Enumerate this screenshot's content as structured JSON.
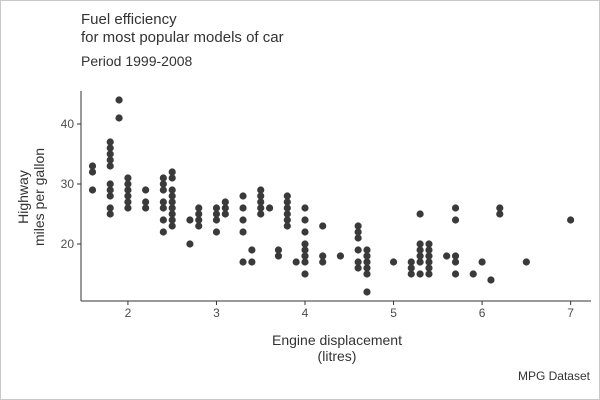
{
  "colors": {
    "points": "#3a3a3a",
    "axis": "#333333",
    "text": "#333333",
    "background": "#ffffff"
  },
  "chart_data": {
    "type": "scatter",
    "title_lines": [
      "Fuel efficiency",
      "for most popular models of car"
    ],
    "subtitle": "Period 1999-2008",
    "xlabel_lines": [
      "Engine displacement",
      "(litres)"
    ],
    "ylabel_lines": [
      "Highway",
      "miles per gallon"
    ],
    "caption": "MPG Dataset",
    "xlim": [
      1.47,
      7.23
    ],
    "ylim": [
      10.5,
      45.5
    ],
    "xticks": [
      2,
      3,
      4,
      5,
      6,
      7
    ],
    "yticks": [
      20,
      30,
      40
    ],
    "grid": false,
    "points": [
      [
        1.6,
        33
      ],
      [
        1.6,
        32
      ],
      [
        1.6,
        29
      ],
      [
        1.8,
        37
      ],
      [
        1.8,
        36
      ],
      [
        1.8,
        35
      ],
      [
        1.8,
        34
      ],
      [
        1.8,
        33
      ],
      [
        1.8,
        30
      ],
      [
        1.8,
        29
      ],
      [
        1.8,
        28
      ],
      [
        1.8,
        26
      ],
      [
        1.8,
        25
      ],
      [
        1.9,
        44
      ],
      [
        1.9,
        41
      ],
      [
        2.0,
        31
      ],
      [
        2.0,
        30
      ],
      [
        2.0,
        29
      ],
      [
        2.0,
        28
      ],
      [
        2.0,
        27
      ],
      [
        2.0,
        26
      ],
      [
        2.2,
        29
      ],
      [
        2.2,
        27
      ],
      [
        2.2,
        26
      ],
      [
        2.4,
        31
      ],
      [
        2.4,
        30
      ],
      [
        2.4,
        29
      ],
      [
        2.4,
        27
      ],
      [
        2.4,
        26
      ],
      [
        2.4,
        24
      ],
      [
        2.4,
        22
      ],
      [
        2.5,
        32
      ],
      [
        2.5,
        31
      ],
      [
        2.5,
        29
      ],
      [
        2.5,
        28
      ],
      [
        2.5,
        27
      ],
      [
        2.5,
        26
      ],
      [
        2.5,
        25
      ],
      [
        2.5,
        24
      ],
      [
        2.5,
        23
      ],
      [
        2.7,
        24
      ],
      [
        2.7,
        20
      ],
      [
        2.8,
        26
      ],
      [
        2.8,
        25
      ],
      [
        2.8,
        24
      ],
      [
        2.8,
        23
      ],
      [
        3.0,
        26
      ],
      [
        3.0,
        25
      ],
      [
        3.0,
        24
      ],
      [
        3.0,
        22
      ],
      [
        3.1,
        27
      ],
      [
        3.1,
        26
      ],
      [
        3.1,
        25
      ],
      [
        3.3,
        28
      ],
      [
        3.3,
        26
      ],
      [
        3.3,
        24
      ],
      [
        3.3,
        22
      ],
      [
        3.3,
        17
      ],
      [
        3.4,
        19
      ],
      [
        3.4,
        17
      ],
      [
        3.5,
        29
      ],
      [
        3.5,
        28
      ],
      [
        3.5,
        27
      ],
      [
        3.5,
        26
      ],
      [
        3.5,
        25
      ],
      [
        3.6,
        26
      ],
      [
        3.7,
        19
      ],
      [
        3.7,
        18
      ],
      [
        3.8,
        28
      ],
      [
        3.8,
        27
      ],
      [
        3.8,
        26
      ],
      [
        3.8,
        25
      ],
      [
        3.8,
        24
      ],
      [
        3.8,
        23
      ],
      [
        3.9,
        17
      ],
      [
        4.0,
        26
      ],
      [
        4.0,
        24
      ],
      [
        4.0,
        22
      ],
      [
        4.0,
        20
      ],
      [
        4.0,
        19
      ],
      [
        4.0,
        18
      ],
      [
        4.0,
        17
      ],
      [
        4.0,
        15
      ],
      [
        4.2,
        23
      ],
      [
        4.2,
        18
      ],
      [
        4.2,
        17
      ],
      [
        4.4,
        18
      ],
      [
        4.6,
        23
      ],
      [
        4.6,
        22
      ],
      [
        4.6,
        21
      ],
      [
        4.6,
        19
      ],
      [
        4.6,
        17
      ],
      [
        4.6,
        16
      ],
      [
        4.7,
        19
      ],
      [
        4.7,
        18
      ],
      [
        4.7,
        17
      ],
      [
        4.7,
        16
      ],
      [
        4.7,
        15
      ],
      [
        4.7,
        12
      ],
      [
        5.0,
        17
      ],
      [
        5.2,
        17
      ],
      [
        5.2,
        16
      ],
      [
        5.2,
        15
      ],
      [
        5.3,
        25
      ],
      [
        5.3,
        20
      ],
      [
        5.3,
        19
      ],
      [
        5.3,
        18
      ],
      [
        5.3,
        17
      ],
      [
        5.3,
        15
      ],
      [
        5.4,
        20
      ],
      [
        5.4,
        19
      ],
      [
        5.4,
        18
      ],
      [
        5.4,
        17
      ],
      [
        5.4,
        16
      ],
      [
        5.4,
        15
      ],
      [
        5.6,
        18
      ],
      [
        5.7,
        26
      ],
      [
        5.7,
        24
      ],
      [
        5.7,
        18
      ],
      [
        5.7,
        17
      ],
      [
        5.7,
        15
      ],
      [
        5.9,
        15
      ],
      [
        6.0,
        17
      ],
      [
        6.1,
        14
      ],
      [
        6.2,
        26
      ],
      [
        6.2,
        25
      ],
      [
        6.5,
        17
      ],
      [
        7.0,
        24
      ]
    ]
  }
}
